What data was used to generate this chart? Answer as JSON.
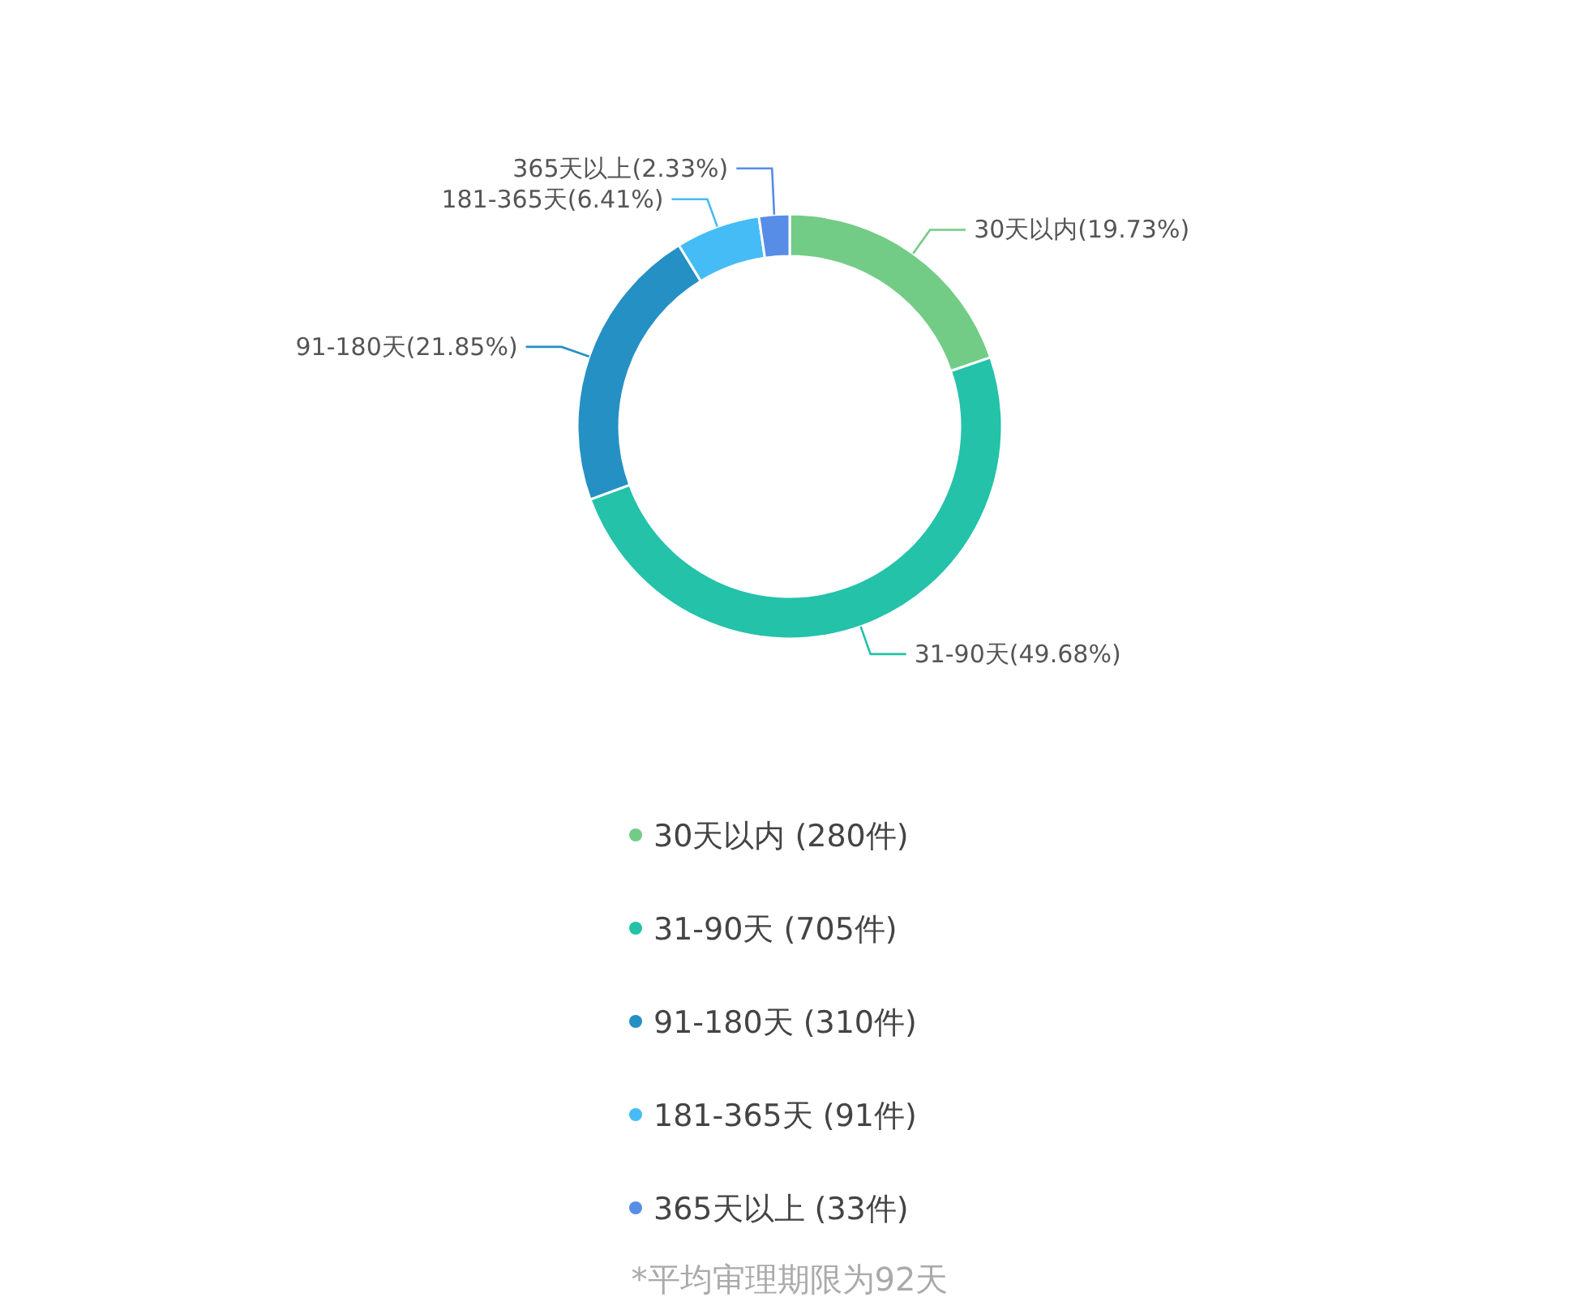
{
  "chart_data": {
    "type": "donut",
    "categories": [
      "30天以内",
      "31-90天",
      "91-180天",
      "181-365天",
      "365天以上"
    ],
    "values": [
      280,
      705,
      310,
      91,
      33
    ],
    "value_labels": [
      "(280件)",
      "(705件)",
      "(310件)",
      "(91件)",
      "(33件)"
    ],
    "colors": [
      "#73cc86",
      "#23c2a9",
      "#2590c4",
      "#45bcf5",
      "#578de6"
    ],
    "legend": "bottom",
    "annotations": [
      "30天以内(19.73%)",
      "31-90天(49.68%)",
      "91-180天(21.85%)",
      "181-365天(6.41%)",
      "365天以上(2.33%)",
      "*平均审理期限为92天"
    ]
  }
}
